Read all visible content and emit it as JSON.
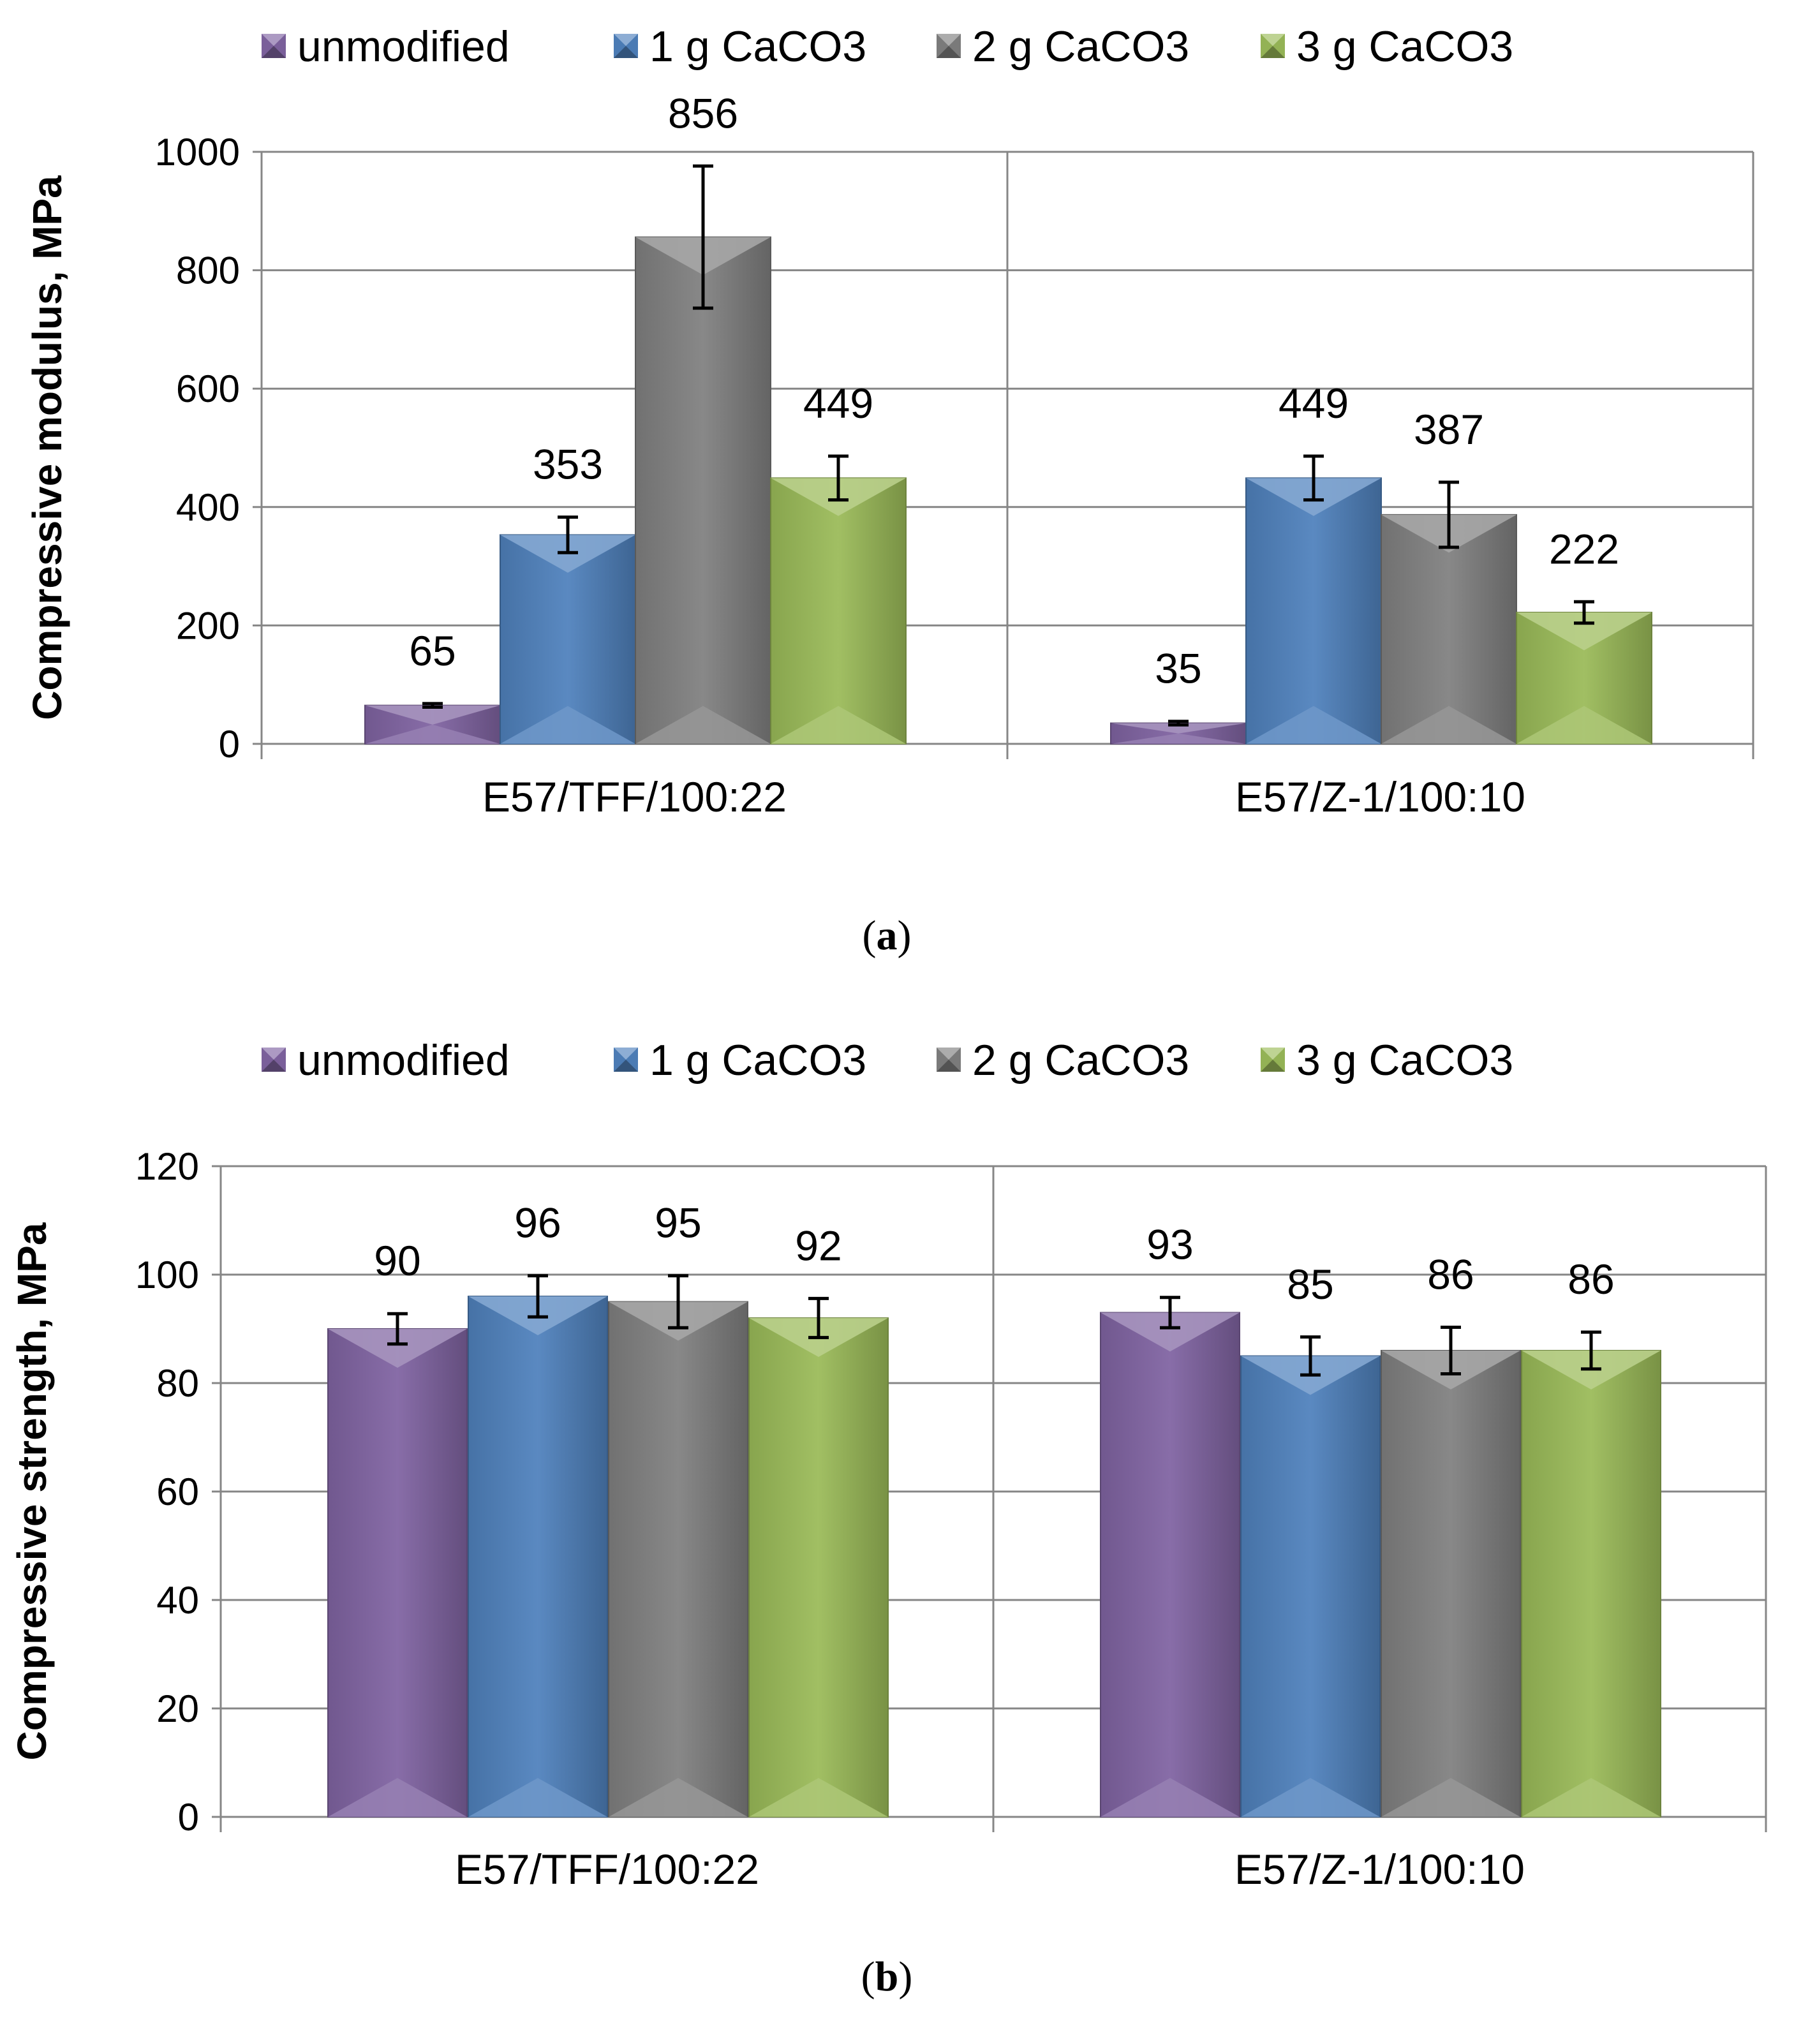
{
  "colors": {
    "unmodified": "#8064A2",
    "1 g CaCO3": "#4F81BD",
    "2 g CaCO3": "#808080",
    "3 g CaCO3": "#9BBB59",
    "grid": "#868686",
    "axis": "#868686",
    "text": "#000000"
  },
  "icons": {
    "legend_marker": "bevel-square-icon"
  },
  "chart_data": [
    {
      "type": "bar",
      "panel_label": "a",
      "title": "",
      "xlabel": "",
      "ylabel": "Compressive modulus, MPa",
      "ylim": [
        0,
        1000
      ],
      "yticks": [
        0,
        200,
        400,
        600,
        800,
        1000
      ],
      "grid": true,
      "legend_position": "top",
      "categories": [
        "E57/TFF/100:22",
        "E57/Z-1/100:10"
      ],
      "series": [
        {
          "name": "unmodified",
          "values": [
            65,
            35
          ],
          "labels": [
            "65",
            "35"
          ],
          "error": [
            3,
            3
          ]
        },
        {
          "name": "1 g CaCO3",
          "values": [
            353,
            449
          ],
          "labels": [
            "353",
            "449"
          ],
          "error": [
            30,
            37
          ]
        },
        {
          "name": "2 g CaCO3",
          "values": [
            856,
            387
          ],
          "labels": [
            "856",
            "387"
          ],
          "error": [
            120,
            55
          ]
        },
        {
          "name": "3 g CaCO3",
          "values": [
            449,
            222
          ],
          "labels": [
            "449",
            "222"
          ],
          "error": [
            37,
            18
          ]
        }
      ]
    },
    {
      "type": "bar",
      "panel_label": "b",
      "title": "",
      "xlabel": "",
      "ylabel": "Compressive strength, MPa",
      "ylim": [
        0,
        120
      ],
      "yticks": [
        0,
        20,
        40,
        60,
        80,
        100,
        120
      ],
      "grid": true,
      "legend_position": "top",
      "categories": [
        "E57/TFF/100:22",
        "E57/Z-1/100:10"
      ],
      "series": [
        {
          "name": "unmodified",
          "values": [
            90,
            93
          ],
          "labels": [
            "90",
            "93"
          ],
          "error": [
            2.8,
            2.8
          ]
        },
        {
          "name": "1 g CaCO3",
          "values": [
            96,
            85
          ],
          "labels": [
            "96",
            "85"
          ],
          "error": [
            3.8,
            3.5
          ]
        },
        {
          "name": "2 g CaCO3",
          "values": [
            95,
            86
          ],
          "labels": [
            "95",
            "86"
          ],
          "error": [
            4.8,
            4.3
          ]
        },
        {
          "name": "3 g CaCO3",
          "values": [
            92,
            86
          ],
          "labels": [
            "92",
            "86"
          ],
          "error": [
            3.6,
            3.4
          ]
        }
      ]
    }
  ]
}
